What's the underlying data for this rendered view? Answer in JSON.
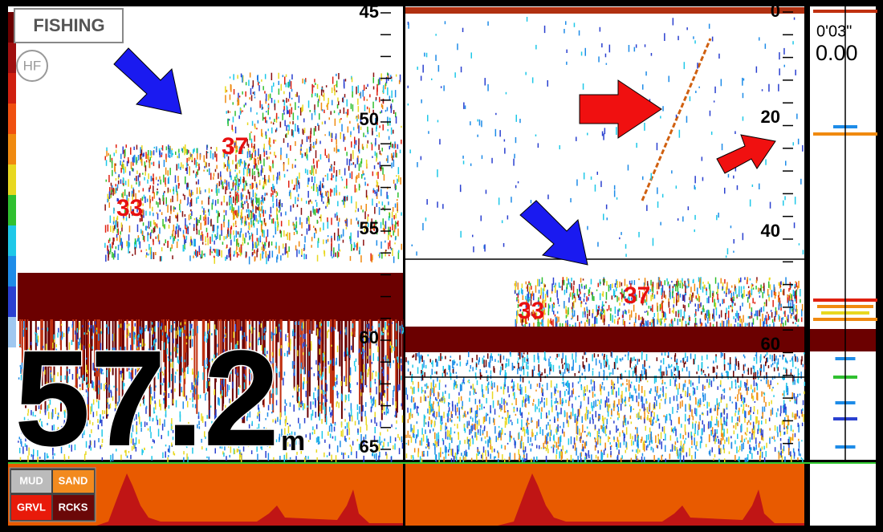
{
  "mode": "FISHING",
  "frequency": "HF",
  "left_scale": [
    "45",
    "50",
    "55",
    "60",
    "65"
  ],
  "right_scale": [
    "0",
    "20",
    "40",
    "60"
  ],
  "timer": "0'03\"",
  "timer_value": "0.00",
  "depth": {
    "value": "57.2",
    "unit": "m"
  },
  "left_labels": [
    "33",
    "37"
  ],
  "right_labels": [
    "33",
    "37"
  ],
  "bottom_types": [
    "MUD",
    "SAND",
    "GRVL",
    "RCKS"
  ]
}
